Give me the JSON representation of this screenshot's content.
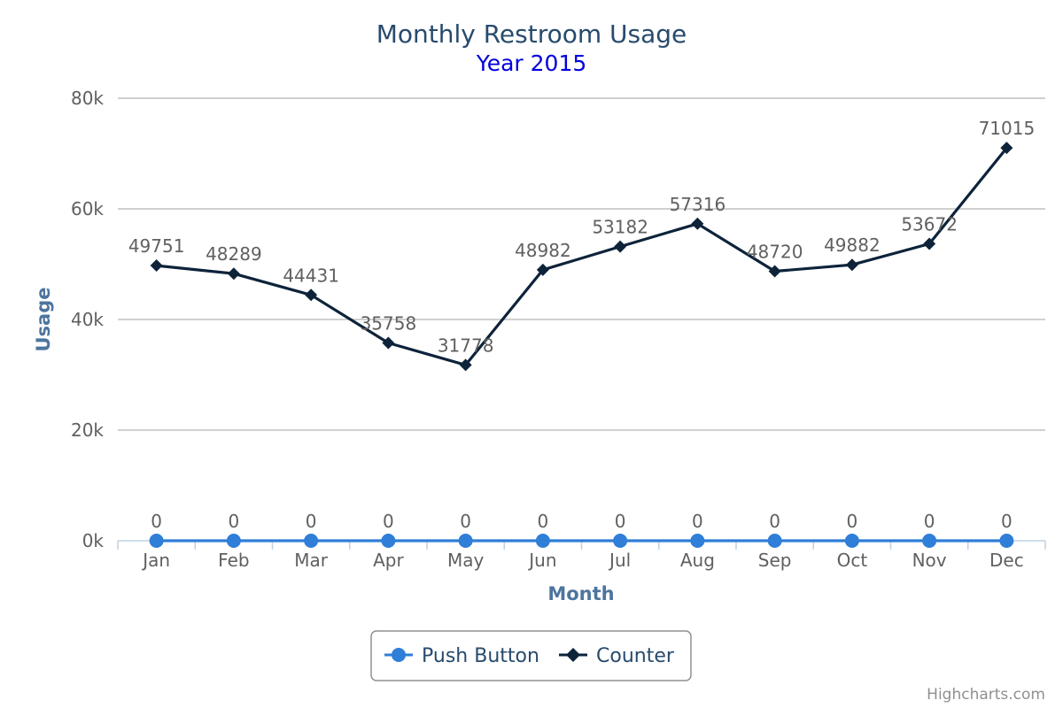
{
  "chart_data": {
    "type": "line",
    "title": "Monthly Restroom Usage",
    "subtitle": "Year 2015",
    "xlabel": "Month",
    "ylabel": "Usage",
    "categories": [
      "Jan",
      "Feb",
      "Mar",
      "Apr",
      "May",
      "Jun",
      "Jul",
      "Aug",
      "Sep",
      "Oct",
      "Nov",
      "Dec"
    ],
    "ylim": [
      0,
      80000
    ],
    "yticks": [
      {
        "value": 0,
        "label": "0k"
      },
      {
        "value": 20000,
        "label": "20k"
      },
      {
        "value": 40000,
        "label": "40k"
      },
      {
        "value": 60000,
        "label": "60k"
      },
      {
        "value": 80000,
        "label": "80k"
      }
    ],
    "grid": true,
    "legend_position": "bottom-center",
    "series": [
      {
        "name": "Push Button",
        "color": "#2f7ed8",
        "marker": "circle",
        "values": [
          0,
          0,
          0,
          0,
          0,
          0,
          0,
          0,
          0,
          0,
          0,
          0
        ]
      },
      {
        "name": "Counter",
        "color": "#0d233a",
        "marker": "diamond",
        "values": [
          49751,
          48289,
          44431,
          35758,
          31778,
          48982,
          53182,
          57316,
          48720,
          49882,
          53672,
          71015
        ]
      }
    ],
    "credits": "Highcharts.com"
  }
}
